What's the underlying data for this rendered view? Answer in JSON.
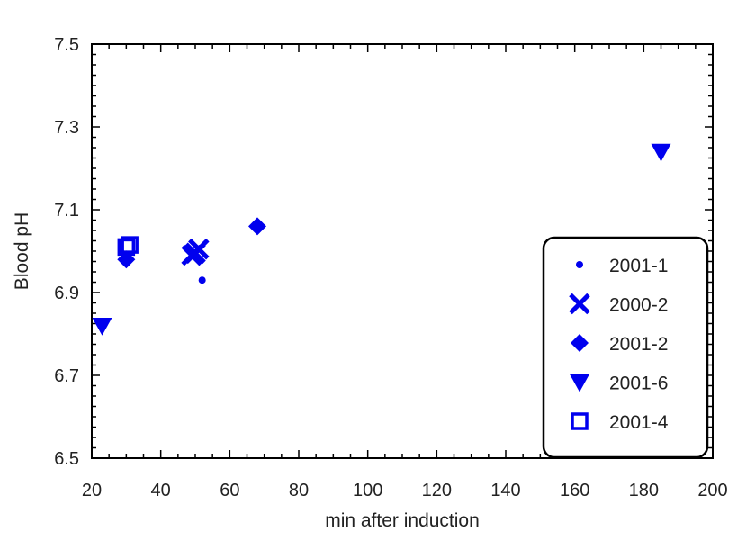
{
  "chart_data": {
    "type": "scatter",
    "title": "",
    "xlabel": "min after induction",
    "ylabel": "Blood pH",
    "xlim": [
      20,
      200
    ],
    "ylim": [
      6.5,
      7.5
    ],
    "xticks": [
      "20",
      "40",
      "60",
      "80",
      "100",
      "120",
      "140",
      "160",
      "180",
      "200"
    ],
    "yticks": [
      "6.5",
      "6.7",
      "6.9",
      "7.1",
      "7.3",
      "7.5"
    ],
    "grid": false,
    "legend_position": "bottom-right",
    "marker_color": "#0000ee",
    "series": [
      {
        "name": "2001-1",
        "marker": "dot",
        "points": [
          [
            52,
            6.93
          ]
        ]
      },
      {
        "name": "2000-2",
        "marker": "x",
        "points": [
          [
            49,
            6.99
          ],
          [
            50,
            6.995
          ],
          [
            51,
            7.005
          ]
        ]
      },
      {
        "name": "2001-2",
        "marker": "diamond",
        "points": [
          [
            30,
            6.98
          ],
          [
            68,
            7.06
          ]
        ]
      },
      {
        "name": "2001-6",
        "marker": "triangle-down",
        "points": [
          [
            23,
            6.82
          ],
          [
            185,
            7.24
          ]
        ]
      },
      {
        "name": "2001-4",
        "marker": "square",
        "points": [
          [
            30,
            7.01
          ],
          [
            31,
            7.015
          ]
        ]
      }
    ]
  }
}
